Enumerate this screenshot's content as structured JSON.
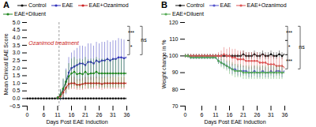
{
  "chart_data": [
    {
      "type": "line",
      "title": "A",
      "xlabel": "Days Post EAE Induction",
      "ylabel": "Mean Clinical EAE Score",
      "xlim": [
        0,
        36
      ],
      "ylim": [
        -0.5,
        5.0
      ],
      "xticks": [
        0,
        6,
        11,
        16,
        21,
        26,
        31,
        36
      ],
      "yticks": [
        {
          "value": -0.5,
          "label": "−0.5"
        },
        {
          "value": 0,
          "label": "0.0"
        },
        0.5,
        {
          "value": 1,
          "label": "1.0"
        },
        1.5,
        {
          "value": 2,
          "label": "2.0"
        },
        2.5,
        {
          "value": 3,
          "label": "3.0"
        },
        3.5,
        {
          "value": 4,
          "label": "4.0"
        },
        4.5,
        {
          "value": 5,
          "label": "5.0"
        }
      ],
      "grid": false,
      "legend": "top",
      "marker": "circle",
      "vline_x": 11.5,
      "annotations": [
        {
          "text": "Ozanimod treatment",
          "x": 0.5,
          "y": 3.5,
          "color": "#cc2222"
        }
      ],
      "brackets": [
        "***",
        "*"
      ],
      "bracket_outer": "ns",
      "series": [
        {
          "name": "Control",
          "color": "#111111",
          "x": [
            0,
            1,
            2,
            3,
            4,
            5,
            6,
            7,
            8,
            9,
            10,
            11,
            12,
            13,
            14,
            15,
            16,
            17,
            18,
            19,
            20,
            21,
            22,
            23,
            24,
            25,
            26,
            27,
            28,
            29,
            30,
            31,
            32,
            33,
            34,
            35,
            36
          ],
          "values": [
            0,
            0,
            0,
            0,
            0,
            0,
            0,
            0,
            0,
            0,
            0,
            0,
            0,
            0,
            0,
            0,
            0,
            0,
            0,
            0,
            0,
            0,
            0,
            0,
            0,
            0,
            0,
            0,
            0,
            0,
            0,
            0,
            0,
            0,
            0,
            0,
            0
          ],
          "errors": [
            0,
            0,
            0,
            0,
            0,
            0,
            0,
            0,
            0,
            0,
            0,
            0,
            0,
            0,
            0,
            0,
            0,
            0,
            0,
            0,
            0,
            0,
            0,
            0,
            0,
            0,
            0,
            0,
            0,
            0,
            0,
            0,
            0,
            0,
            0,
            0,
            0
          ]
        },
        {
          "name": "EAE",
          "color": "#3333bb",
          "x": [
            11,
            12,
            13,
            14,
            15,
            16,
            17,
            18,
            19,
            20,
            21,
            22,
            23,
            24,
            25,
            26,
            27,
            28,
            29,
            30,
            31,
            32,
            33,
            34,
            35,
            36
          ],
          "values": [
            0.05,
            0.2,
            0.6,
            1.1,
            1.7,
            2.0,
            2.1,
            2.2,
            2.3,
            2.3,
            2.2,
            2.4,
            2.4,
            2.3,
            2.5,
            2.4,
            2.5,
            2.5,
            2.6,
            2.5,
            2.6,
            2.6,
            2.7,
            2.7,
            2.65,
            2.7
          ],
          "errors": [
            0.05,
            0.35,
            0.65,
            0.85,
            1.0,
            1.0,
            1.05,
            1.1,
            1.15,
            1.15,
            1.2,
            1.2,
            1.2,
            1.15,
            1.2,
            1.2,
            1.2,
            1.2,
            1.2,
            1.2,
            1.2,
            1.2,
            1.25,
            1.2,
            1.2,
            1.2
          ]
        },
        {
          "name": "EAE+Ozanimod",
          "color": "#cc2222",
          "x": [
            11,
            12,
            13,
            14,
            15,
            16,
            17,
            18,
            19,
            20,
            21,
            22,
            23,
            24,
            25,
            26,
            27,
            28,
            29,
            30,
            31,
            32,
            33,
            34,
            35,
            36
          ],
          "values": [
            0.05,
            0.15,
            0.4,
            0.7,
            0.95,
            1.0,
            1.0,
            0.9,
            0.9,
            0.95,
            1.0,
            1.0,
            1.0,
            1.0,
            1.0,
            1.0,
            0.95,
            1.0,
            1.0,
            1.0,
            1.0,
            1.0,
            1.0,
            1.0,
            1.0,
            1.0
          ],
          "errors": [
            0.05,
            0.15,
            0.3,
            0.35,
            0.4,
            0.4,
            0.4,
            0.35,
            0.35,
            0.4,
            0.4,
            0.4,
            0.4,
            0.4,
            0.4,
            0.4,
            0.4,
            0.4,
            0.4,
            0.4,
            0.4,
            0.4,
            0.4,
            0.4,
            0.4,
            0.4
          ]
        },
        {
          "name": "EAE+Diluent",
          "color": "#228822",
          "x": [
            11,
            12,
            13,
            14,
            15,
            16,
            17,
            18,
            19,
            20,
            21,
            22,
            23,
            24,
            25,
            26,
            27,
            28,
            29,
            30,
            31,
            32,
            33,
            34,
            35,
            36
          ],
          "values": [
            0.05,
            0.25,
            0.65,
            1.1,
            1.45,
            1.65,
            1.75,
            1.6,
            1.65,
            1.6,
            1.75,
            1.6,
            1.65,
            1.65,
            1.75,
            1.65,
            1.65,
            1.65,
            1.65,
            1.65,
            1.65,
            1.65,
            1.65,
            1.65,
            1.65,
            1.65
          ],
          "errors": [
            0.05,
            0.35,
            0.65,
            0.75,
            0.85,
            0.95,
            0.95,
            0.95,
            0.95,
            0.95,
            0.95,
            0.95,
            0.95,
            0.95,
            0.95,
            0.95,
            0.95,
            0.95,
            0.95,
            0.95,
            0.95,
            0.95,
            0.95,
            0.95,
            0.95,
            0.95
          ]
        }
      ]
    },
    {
      "type": "line",
      "title": "B",
      "xlabel": "Days Post EAE Induction",
      "ylabel": "Weight change in %",
      "xlim": [
        0,
        36
      ],
      "ylim": [
        70,
        120
      ],
      "xticks": [
        0,
        6,
        11,
        16,
        21,
        26,
        31,
        36
      ],
      "yticks": [
        70,
        80,
        90,
        100,
        110,
        120
      ],
      "grid": false,
      "legend": "top",
      "marker": "circle",
      "brackets": [
        "***",
        "*",
        "***"
      ],
      "bracket_outer": "ns",
      "series": [
        {
          "name": "Control",
          "color": "#111111",
          "x": [
            0,
            1,
            2,
            3,
            4,
            5,
            6,
            7,
            8,
            9,
            10,
            11,
            12,
            13,
            14,
            15,
            16,
            17,
            18,
            19,
            20,
            21,
            22,
            23,
            24,
            25,
            26,
            27,
            28,
            29,
            30,
            31,
            32,
            33,
            34,
            35,
            36
          ],
          "values": [
            100,
            100,
            100,
            100,
            100,
            100,
            100,
            100,
            100,
            100,
            100,
            100,
            100,
            100,
            100,
            100,
            100,
            100,
            100,
            100,
            100,
            101,
            100,
            100,
            100,
            101,
            100,
            100,
            101,
            100,
            100,
            101,
            100,
            100,
            101,
            100,
            101
          ],
          "errors": [
            1,
            1,
            1,
            1,
            1,
            1,
            1,
            1,
            1,
            1,
            1,
            1,
            1,
            1,
            1,
            1,
            1,
            1,
            1,
            1,
            2,
            2,
            2,
            2,
            2,
            2,
            2,
            2,
            2,
            2,
            2,
            2,
            2,
            2,
            2,
            2,
            2
          ]
        },
        {
          "name": "EAE",
          "color": "#5555cc",
          "x": [
            0,
            1,
            2,
            3,
            4,
            5,
            6,
            7,
            8,
            9,
            10,
            11,
            12,
            13,
            14,
            15,
            16,
            17,
            18,
            19,
            20,
            21,
            22,
            23,
            24,
            25,
            26,
            27,
            28,
            29,
            30,
            31,
            32,
            33,
            34,
            35,
            36
          ],
          "values": [
            100,
            100,
            99,
            99,
            99,
            99,
            99,
            99,
            99,
            99,
            99,
            99,
            97,
            96,
            95,
            94,
            93,
            92,
            92,
            91,
            91,
            91,
            91,
            90,
            90,
            91,
            90,
            90,
            91,
            90,
            90,
            91,
            90,
            91,
            91,
            90,
            91
          ],
          "errors": [
            1,
            1,
            1,
            1,
            1,
            1,
            1,
            1,
            1,
            1,
            1,
            1,
            2,
            2,
            2,
            2,
            2,
            3,
            3,
            3,
            3,
            3,
            3,
            3,
            3,
            3,
            3,
            3,
            3,
            3,
            3,
            3,
            3,
            3,
            3,
            3,
            3
          ]
        },
        {
          "name": "EAE+Ozanimod",
          "color": "#dd5555",
          "x": [
            0,
            1,
            2,
            3,
            4,
            5,
            6,
            7,
            8,
            9,
            10,
            11,
            12,
            13,
            14,
            15,
            16,
            17,
            18,
            19,
            20,
            21,
            22,
            23,
            24,
            25,
            26,
            27,
            28,
            29,
            30,
            31,
            32,
            33,
            34,
            35,
            36
          ],
          "values": [
            100,
            100,
            100,
            100,
            100,
            100,
            100,
            100,
            100,
            100,
            100,
            100,
            100,
            100,
            101,
            100,
            100,
            99,
            99,
            98,
            98,
            98,
            97,
            97,
            97,
            97,
            97,
            96,
            96,
            96,
            95,
            95,
            95,
            94,
            94,
            94,
            93
          ],
          "errors": [
            1,
            1,
            1,
            1,
            1,
            1,
            1,
            1,
            1,
            1,
            1,
            1,
            2,
            3,
            4,
            4,
            5,
            5,
            5,
            5,
            5,
            5,
            5,
            5,
            5,
            5,
            5,
            5,
            5,
            5,
            5,
            5,
            5,
            5,
            5,
            5,
            5
          ]
        },
        {
          "name": "EAE+Diluent",
          "color": "#55aa55",
          "x": [
            0,
            1,
            2,
            3,
            4,
            5,
            6,
            7,
            8,
            9,
            10,
            11,
            12,
            13,
            14,
            15,
            16,
            17,
            18,
            19,
            20,
            21,
            22,
            23,
            24,
            25,
            26,
            27,
            28,
            29,
            30,
            31,
            32,
            33,
            34,
            35,
            36
          ],
          "values": [
            100,
            100,
            99,
            99,
            99,
            99,
            99,
            99,
            99,
            99,
            99,
            99,
            97,
            96,
            95,
            94,
            93,
            92,
            91,
            91,
            91,
            90,
            90,
            90,
            90,
            90,
            90,
            90,
            90,
            90,
            90,
            90,
            90,
            90,
            90,
            90,
            90
          ],
          "errors": [
            1,
            1,
            1,
            1,
            1,
            1,
            1,
            1,
            1,
            1,
            1,
            1,
            2,
            3,
            3,
            3,
            4,
            4,
            4,
            4,
            4,
            4,
            4,
            4,
            4,
            4,
            4,
            4,
            4,
            4,
            4,
            4,
            4,
            4,
            4,
            4,
            4
          ]
        }
      ]
    }
  ]
}
